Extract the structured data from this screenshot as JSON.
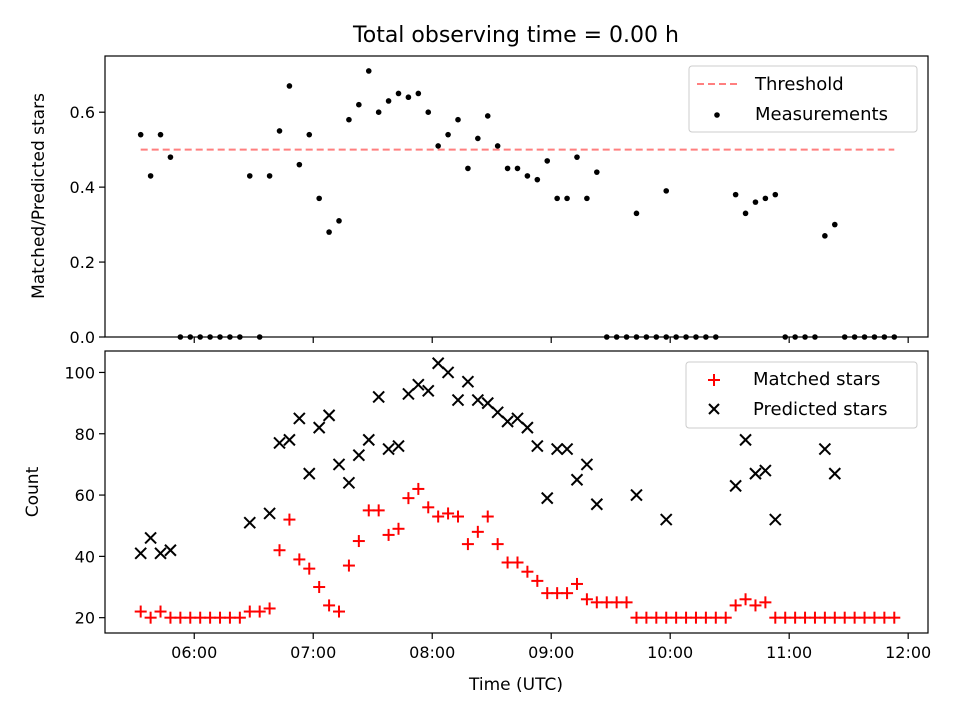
{
  "chart_data": [
    {
      "type": "scatter",
      "title": "Total observing time = 0.00 h",
      "xlabel": "",
      "ylabel": "Matched/Predicted stars",
      "xlim": [
        "05:15",
        "12:10"
      ],
      "ylim": [
        0,
        0.75
      ],
      "yticks": [
        "0.0",
        "0.2",
        "0.4",
        "0.6"
      ],
      "legend_position": "top-right",
      "grid": false,
      "series": [
        {
          "name": "Threshold",
          "kind": "dashed-line",
          "color": "#ff7f7f",
          "points": [
            [
              "05:33",
              0.5
            ],
            [
              "11:53",
              0.5
            ]
          ]
        },
        {
          "name": "Measurements",
          "kind": "dot",
          "color": "#000000",
          "points": [
            [
              "05:33",
              0.54
            ],
            [
              "05:38",
              0.43
            ],
            [
              "05:43",
              0.54
            ],
            [
              "05:48",
              0.48
            ],
            [
              "05:53",
              0.0
            ],
            [
              "05:58",
              0.0
            ],
            [
              "06:03",
              0.0
            ],
            [
              "06:08",
              0.0
            ],
            [
              "06:13",
              0.0
            ],
            [
              "06:18",
              0.0
            ],
            [
              "06:23",
              0.0
            ],
            [
              "06:28",
              0.43
            ],
            [
              "06:33",
              0.0
            ],
            [
              "06:38",
              0.43
            ],
            [
              "06:43",
              0.55
            ],
            [
              "06:48",
              0.67
            ],
            [
              "06:53",
              0.46
            ],
            [
              "06:58",
              0.54
            ],
            [
              "07:03",
              0.37
            ],
            [
              "07:08",
              0.28
            ],
            [
              "07:13",
              0.31
            ],
            [
              "07:18",
              0.58
            ],
            [
              "07:23",
              0.62
            ],
            [
              "07:28",
              0.71
            ],
            [
              "07:33",
              0.6
            ],
            [
              "07:38",
              0.63
            ],
            [
              "07:43",
              0.65
            ],
            [
              "07:48",
              0.64
            ],
            [
              "07:53",
              0.65
            ],
            [
              "07:58",
              0.6
            ],
            [
              "08:03",
              0.51
            ],
            [
              "08:08",
              0.54
            ],
            [
              "08:13",
              0.58
            ],
            [
              "08:18",
              0.45
            ],
            [
              "08:23",
              0.53
            ],
            [
              "08:28",
              0.59
            ],
            [
              "08:33",
              0.51
            ],
            [
              "08:38",
              0.45
            ],
            [
              "08:43",
              0.45
            ],
            [
              "08:48",
              0.43
            ],
            [
              "08:53",
              0.42
            ],
            [
              "08:58",
              0.47
            ],
            [
              "09:03",
              0.37
            ],
            [
              "09:08",
              0.37
            ],
            [
              "09:13",
              0.48
            ],
            [
              "09:18",
              0.37
            ],
            [
              "09:23",
              0.44
            ],
            [
              "09:28",
              0.0
            ],
            [
              "09:33",
              0.0
            ],
            [
              "09:38",
              0.0
            ],
            [
              "09:43",
              0.0
            ],
            [
              "09:48",
              0.0
            ],
            [
              "09:53",
              0.0
            ],
            [
              "09:58",
              0.0
            ],
            [
              "10:03",
              0.0
            ],
            [
              "10:08",
              0.0
            ],
            [
              "10:13",
              0.0
            ],
            [
              "10:18",
              0.0
            ],
            [
              "10:23",
              0.0
            ],
            [
              "09:43",
              0.33
            ],
            [
              "09:58",
              0.39
            ],
            [
              "10:33",
              0.38
            ],
            [
              "10:38",
              0.33
            ],
            [
              "10:43",
              0.36
            ],
            [
              "10:48",
              0.37
            ],
            [
              "10:53",
              0.38
            ],
            [
              "10:58",
              0.0
            ],
            [
              "11:03",
              0.0
            ],
            [
              "11:08",
              0.0
            ],
            [
              "11:13",
              0.0
            ],
            [
              "11:18",
              0.27
            ],
            [
              "11:23",
              0.3
            ],
            [
              "11:28",
              0.0
            ],
            [
              "11:33",
              0.0
            ],
            [
              "11:38",
              0.0
            ],
            [
              "11:43",
              0.0
            ],
            [
              "11:48",
              0.0
            ],
            [
              "11:53",
              0.0
            ]
          ]
        }
      ]
    },
    {
      "type": "scatter",
      "title": "",
      "xlabel": "Time (UTC)",
      "ylabel": "Count",
      "xlim": [
        "05:15",
        "12:10"
      ],
      "ylim": [
        15,
        107
      ],
      "yticks": [
        "20",
        "40",
        "60",
        "80",
        "100"
      ],
      "xticks": [
        "06:00",
        "07:00",
        "08:00",
        "09:00",
        "10:00",
        "11:00",
        "12:00"
      ],
      "legend_position": "top-right",
      "grid": false,
      "series": [
        {
          "name": "Matched stars",
          "kind": "plus",
          "color": "#ff0000",
          "points": [
            [
              "05:33",
              22
            ],
            [
              "05:38",
              20
            ],
            [
              "05:43",
              22
            ],
            [
              "05:48",
              20
            ],
            [
              "05:53",
              20
            ],
            [
              "05:58",
              20
            ],
            [
              "06:03",
              20
            ],
            [
              "06:08",
              20
            ],
            [
              "06:13",
              20
            ],
            [
              "06:18",
              20
            ],
            [
              "06:23",
              20
            ],
            [
              "06:28",
              22
            ],
            [
              "06:33",
              22
            ],
            [
              "06:38",
              23
            ],
            [
              "06:43",
              42
            ],
            [
              "06:48",
              52
            ],
            [
              "06:53",
              39
            ],
            [
              "06:58",
              36
            ],
            [
              "07:03",
              30
            ],
            [
              "07:08",
              24
            ],
            [
              "07:13",
              22
            ],
            [
              "07:18",
              37
            ],
            [
              "07:23",
              45
            ],
            [
              "07:28",
              55
            ],
            [
              "07:33",
              55
            ],
            [
              "07:38",
              47
            ],
            [
              "07:43",
              49
            ],
            [
              "07:48",
              59
            ],
            [
              "07:53",
              62
            ],
            [
              "07:58",
              56
            ],
            [
              "08:03",
              53
            ],
            [
              "08:08",
              54
            ],
            [
              "08:13",
              53
            ],
            [
              "08:18",
              44
            ],
            [
              "08:23",
              48
            ],
            [
              "08:28",
              53
            ],
            [
              "08:33",
              44
            ],
            [
              "08:38",
              38
            ],
            [
              "08:43",
              38
            ],
            [
              "08:48",
              35
            ],
            [
              "08:53",
              32
            ],
            [
              "08:58",
              28
            ],
            [
              "09:03",
              28
            ],
            [
              "09:08",
              28
            ],
            [
              "09:13",
              31
            ],
            [
              "09:18",
              26
            ],
            [
              "09:23",
              25
            ],
            [
              "09:28",
              25
            ],
            [
              "09:33",
              25
            ],
            [
              "09:38",
              25
            ],
            [
              "09:43",
              20
            ],
            [
              "09:48",
              20
            ],
            [
              "09:53",
              20
            ],
            [
              "09:58",
              20
            ],
            [
              "10:03",
              20
            ],
            [
              "10:08",
              20
            ],
            [
              "10:13",
              20
            ],
            [
              "10:18",
              20
            ],
            [
              "10:23",
              20
            ],
            [
              "10:28",
              20
            ],
            [
              "10:33",
              24
            ],
            [
              "10:38",
              26
            ],
            [
              "10:43",
              24
            ],
            [
              "10:48",
              25
            ],
            [
              "10:53",
              20
            ],
            [
              "10:58",
              20
            ],
            [
              "11:03",
              20
            ],
            [
              "11:08",
              20
            ],
            [
              "11:13",
              20
            ],
            [
              "11:18",
              20
            ],
            [
              "11:23",
              20
            ],
            [
              "11:28",
              20
            ],
            [
              "11:33",
              20
            ],
            [
              "11:38",
              20
            ],
            [
              "11:43",
              20
            ],
            [
              "11:48",
              20
            ],
            [
              "11:53",
              20
            ]
          ]
        },
        {
          "name": "Predicted stars",
          "kind": "cross",
          "color": "#000000",
          "points": [
            [
              "05:33",
              41
            ],
            [
              "05:38",
              46
            ],
            [
              "05:43",
              41
            ],
            [
              "05:48",
              42
            ],
            [
              "06:28",
              51
            ],
            [
              "06:38",
              54
            ],
            [
              "06:43",
              77
            ],
            [
              "06:48",
              78
            ],
            [
              "06:53",
              85
            ],
            [
              "06:58",
              67
            ],
            [
              "07:03",
              82
            ],
            [
              "07:08",
              86
            ],
            [
              "07:13",
              70
            ],
            [
              "07:18",
              64
            ],
            [
              "07:23",
              73
            ],
            [
              "07:28",
              78
            ],
            [
              "07:33",
              92
            ],
            [
              "07:38",
              75
            ],
            [
              "07:43",
              76
            ],
            [
              "07:48",
              93
            ],
            [
              "07:53",
              96
            ],
            [
              "07:58",
              94
            ],
            [
              "08:03",
              103
            ],
            [
              "08:08",
              100
            ],
            [
              "08:13",
              91
            ],
            [
              "08:18",
              97
            ],
            [
              "08:23",
              91
            ],
            [
              "08:28",
              90
            ],
            [
              "08:33",
              87
            ],
            [
              "08:38",
              84
            ],
            [
              "08:43",
              85
            ],
            [
              "08:48",
              82
            ],
            [
              "08:53",
              76
            ],
            [
              "08:58",
              59
            ],
            [
              "09:03",
              75
            ],
            [
              "09:08",
              75
            ],
            [
              "09:13",
              65
            ],
            [
              "09:18",
              70
            ],
            [
              "09:23",
              57
            ],
            [
              "09:43",
              60
            ],
            [
              "09:58",
              52
            ],
            [
              "10:33",
              63
            ],
            [
              "10:38",
              78
            ],
            [
              "10:43",
              67
            ],
            [
              "10:48",
              68
            ],
            [
              "10:53",
              52
            ],
            [
              "11:18",
              75
            ],
            [
              "11:23",
              67
            ]
          ]
        }
      ]
    }
  ]
}
